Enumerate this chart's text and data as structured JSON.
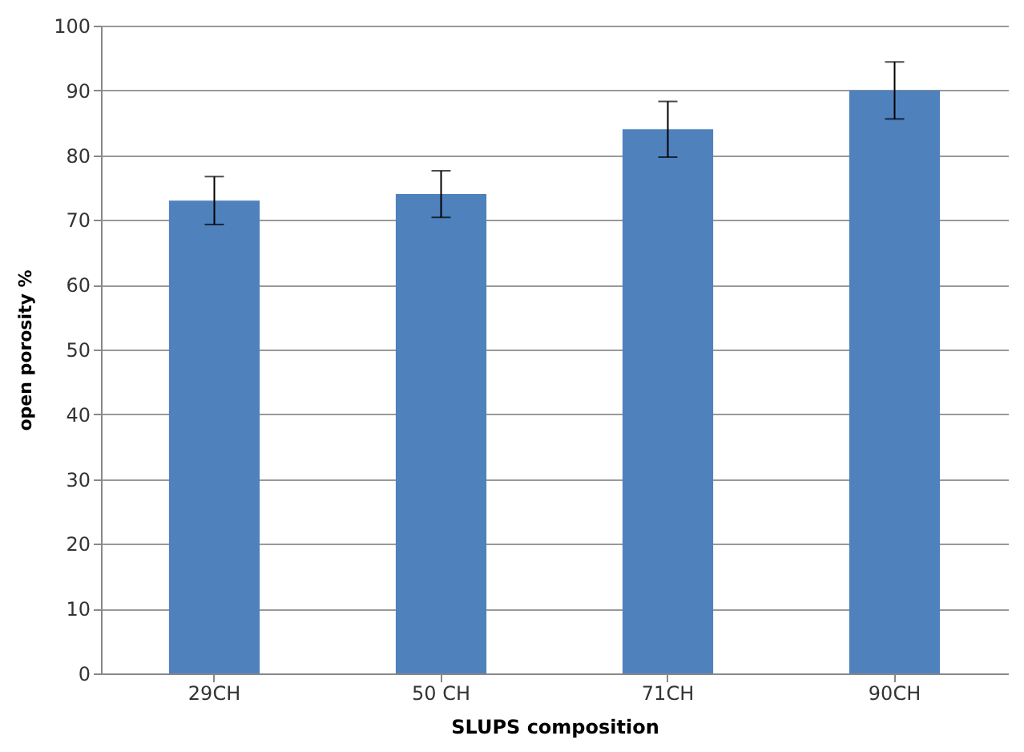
{
  "chart_data": {
    "type": "bar",
    "xlabel": "SLUPS composition",
    "ylabel": "open porosity %",
    "categories": [
      "29CH",
      "50 CH",
      "71CH",
      "90CH"
    ],
    "values": [
      73,
      74,
      84,
      90
    ],
    "errors": [
      3.7,
      3.6,
      4.3,
      4.4
    ],
    "color": "#4f81bd",
    "ylim": [
      0,
      100
    ],
    "yticks": [
      0,
      10,
      20,
      30,
      40,
      50,
      60,
      70,
      80,
      90,
      100
    ],
    "grid": "y"
  }
}
